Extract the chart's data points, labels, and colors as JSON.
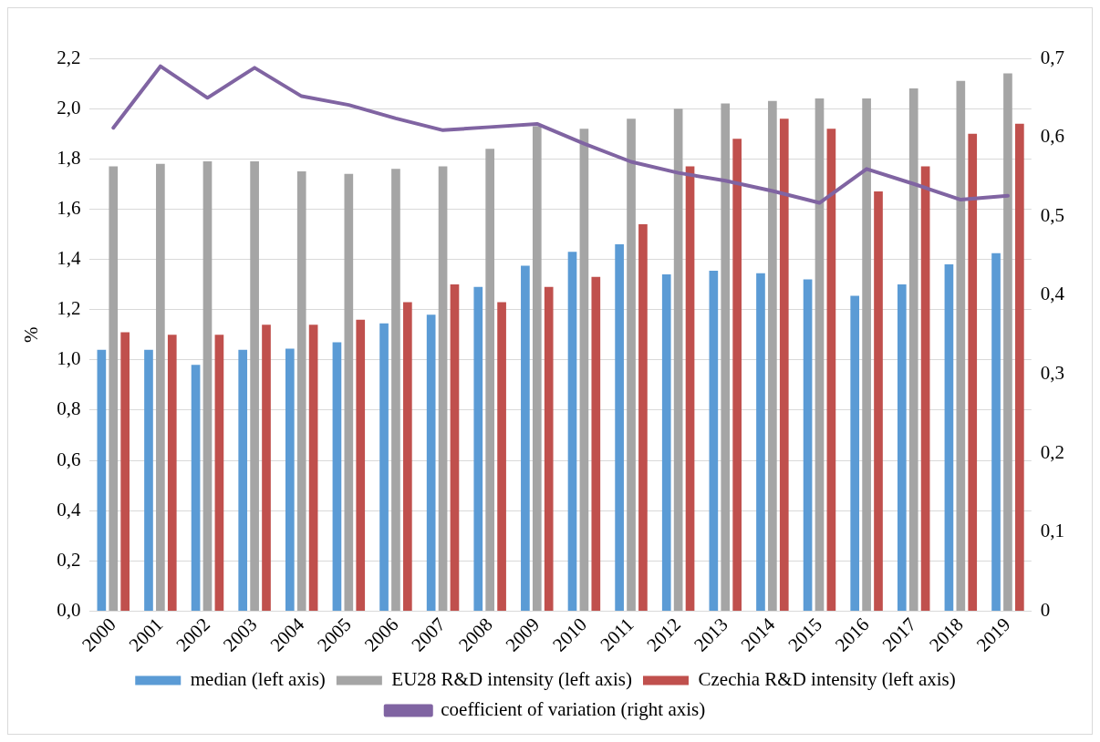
{
  "chart_data": {
    "type": "bar",
    "ylabel": "%",
    "categories": [
      "2000",
      "2001",
      "2002",
      "2003",
      "2004",
      "2005",
      "2006",
      "2007",
      "2008",
      "2009",
      "2010",
      "2011",
      "2012",
      "2013",
      "2014",
      "2015",
      "2016",
      "2017",
      "2018",
      "2019"
    ],
    "series": [
      {
        "name": "median (left axis)",
        "color": "#5b9bd5",
        "values": [
          1.04,
          1.04,
          0.98,
          1.04,
          1.045,
          1.07,
          1.145,
          1.18,
          1.29,
          1.375,
          1.43,
          1.46,
          1.34,
          1.355,
          1.345,
          1.32,
          1.255,
          1.3,
          1.38,
          1.425
        ]
      },
      {
        "name": "EU28 R&D intensity (left axis)",
        "color": "#a5a5a5",
        "values": [
          1.77,
          1.78,
          1.79,
          1.79,
          1.75,
          1.74,
          1.76,
          1.77,
          1.84,
          1.93,
          1.92,
          1.96,
          2.0,
          2.02,
          2.03,
          2.04,
          2.04,
          2.08,
          2.11,
          2.14
        ]
      },
      {
        "name": "Czechia R&D intensity (left axis)",
        "color": "#c0504d",
        "values": [
          1.11,
          1.1,
          1.1,
          1.14,
          1.14,
          1.16,
          1.23,
          1.3,
          1.23,
          1.29,
          1.33,
          1.54,
          1.77,
          1.88,
          1.96,
          1.92,
          1.67,
          1.77,
          1.9,
          1.94
        ]
      },
      {
        "name": "coefficient of variation (right axis)",
        "color": "#8064a2",
        "type": "line",
        "axis": "y2",
        "values": [
          0.612,
          0.69,
          0.65,
          0.688,
          0.652,
          0.641,
          0.624,
          0.609,
          0.613,
          0.617,
          0.592,
          0.569,
          0.555,
          0.545,
          0.532,
          0.517,
          0.56,
          0.541,
          0.521,
          0.526
        ]
      }
    ],
    "ylim": [
      0,
      2.2
    ],
    "yticks": [
      {
        "value": 0,
        "label": "0,0"
      },
      {
        "value": 0.2,
        "label": "0,2"
      },
      {
        "value": 0.4,
        "label": "0,4"
      },
      {
        "value": 0.6,
        "label": "0,6"
      },
      {
        "value": 0.8,
        "label": "0,8"
      },
      {
        "value": 1,
        "label": "1,0"
      },
      {
        "value": 1.2,
        "label": "1,2"
      },
      {
        "value": 1.4,
        "label": "1,4"
      },
      {
        "value": 1.6,
        "label": "1,6"
      },
      {
        "value": 1.8,
        "label": "1,8"
      },
      {
        "value": 2,
        "label": "2,0"
      },
      {
        "value": 2.2,
        "label": "2,2"
      }
    ],
    "y2lim": [
      0,
      0.7
    ],
    "y2ticks": [
      0,
      {
        "value": 0.1,
        "label": "0,1"
      },
      {
        "value": 0.2,
        "label": "0,2"
      },
      {
        "value": 0.3,
        "label": "0,3"
      },
      {
        "value": 0.4,
        "label": "0,4"
      },
      {
        "value": 0.5,
        "label": "0,5"
      },
      {
        "value": 0.6,
        "label": "0,6"
      },
      {
        "value": 0.7,
        "label": "0,7"
      }
    ],
    "grid": "y",
    "legend": "bottom",
    "marker": "none"
  }
}
